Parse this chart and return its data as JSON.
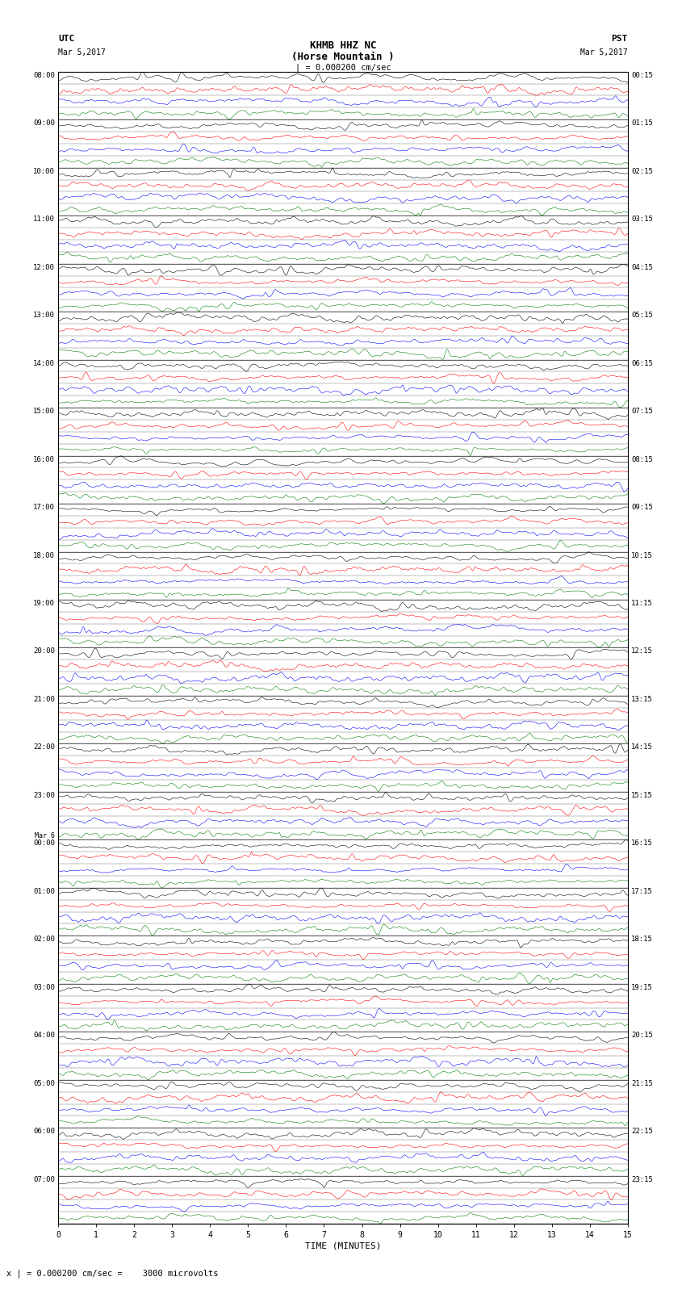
{
  "title_line1": "KHMB HHZ NC",
  "title_line2": "(Horse Mountain )",
  "scale_text": "| = 0.000200 cm/sec",
  "utc_label": "UTC",
  "utc_date": "Mar 5,2017",
  "pst_label": "PST",
  "pst_date": "Mar 5,2017",
  "xlabel": "TIME (MINUTES)",
  "bottom_scale": "x | = 0.000200 cm/sec =    3000 microvolts",
  "left_times_utc": [
    "08:00",
    "09:00",
    "10:00",
    "11:00",
    "12:00",
    "13:00",
    "14:00",
    "15:00",
    "16:00",
    "17:00",
    "18:00",
    "19:00",
    "20:00",
    "21:00",
    "22:00",
    "23:00",
    "Mar 6\n00:00",
    "01:00",
    "02:00",
    "03:00",
    "04:00",
    "05:00",
    "06:00",
    "07:00"
  ],
  "right_times_pst": [
    "00:15",
    "01:15",
    "02:15",
    "03:15",
    "04:15",
    "05:15",
    "06:15",
    "07:15",
    "08:15",
    "09:15",
    "10:15",
    "11:15",
    "12:15",
    "13:15",
    "14:15",
    "15:15",
    "16:15",
    "17:15",
    "18:15",
    "19:15",
    "20:15",
    "21:15",
    "22:15",
    "23:15"
  ],
  "xticks": [
    0,
    1,
    2,
    3,
    4,
    5,
    6,
    7,
    8,
    9,
    10,
    11,
    12,
    13,
    14,
    15
  ],
  "num_rows": 24,
  "traces_per_row": 4,
  "colors": [
    "black",
    "red",
    "blue",
    "green"
  ],
  "fig_width": 8.5,
  "fig_height": 16.13,
  "dpi": 100,
  "xlim": [
    0,
    15
  ],
  "seed": 42
}
